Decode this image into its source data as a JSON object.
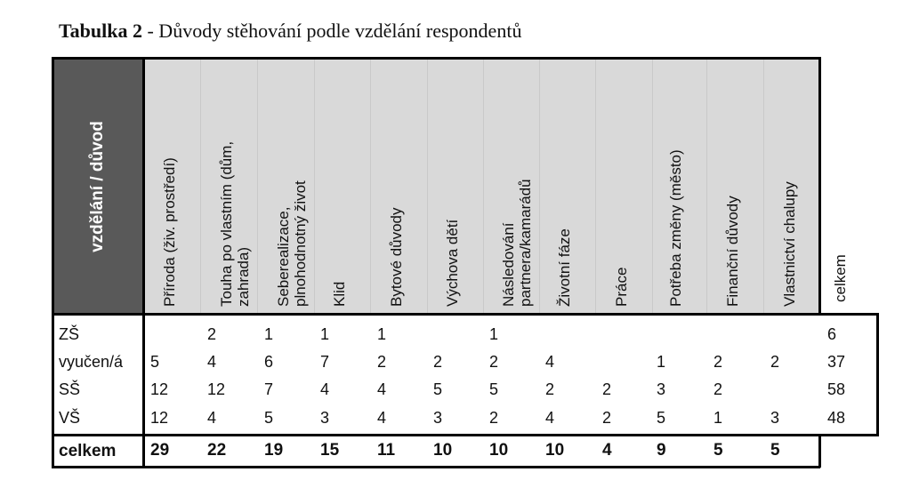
{
  "caption": {
    "label": "Tabulka 2",
    "text": " - Důvody stěhování podle vzdělání respondentů"
  },
  "table": {
    "corner_header": "vzdělání / důvod",
    "columns": [
      [
        "Příroda (živ. prostředí)"
      ],
      [
        "Touha po vlastním (dům,",
        "zahrada)"
      ],
      [
        "Seberealizace,",
        "plnohodnotný život"
      ],
      [
        "Klid"
      ],
      [
        "Bytové důvody"
      ],
      [
        "Výchova dětí"
      ],
      [
        "Následování",
        "partnera/kamarádů"
      ],
      [
        "Životní fáze"
      ],
      [
        "Práce"
      ],
      [
        "Potřeba změny (město)"
      ],
      [
        "Finanční důvody"
      ],
      [
        "Vlastnictví chalupy"
      ]
    ],
    "total_column_header": "celkem",
    "rows": [
      {
        "label": "ZŠ",
        "values": [
          "",
          "2",
          "1",
          "1",
          "1",
          "",
          "1",
          "",
          "",
          "",
          "",
          ""
        ],
        "total": "6"
      },
      {
        "label": "vyučen/á",
        "values": [
          "5",
          "4",
          "6",
          "7",
          "2",
          "2",
          "2",
          "4",
          "",
          "1",
          "2",
          "2"
        ],
        "total": "37"
      },
      {
        "label": "SŠ",
        "values": [
          "12",
          "12",
          "7",
          "4",
          "4",
          "5",
          "5",
          "2",
          "2",
          "3",
          "2",
          ""
        ],
        "total": "58"
      },
      {
        "label": "VŠ",
        "values": [
          "12",
          "4",
          "5",
          "3",
          "4",
          "3",
          "2",
          "4",
          "2",
          "5",
          "1",
          "3"
        ],
        "total": "48"
      }
    ],
    "totals": {
      "label": "celkem",
      "values": [
        "29",
        "22",
        "19",
        "15",
        "11",
        "10",
        "10",
        "10",
        "4",
        "9",
        "5",
        "5"
      ]
    }
  }
}
